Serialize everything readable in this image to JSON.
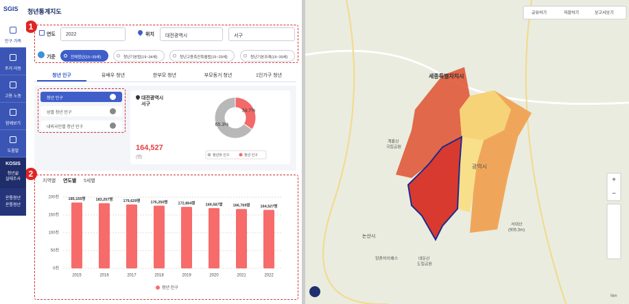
{
  "header": {
    "logo": "SGIS",
    "title": "청년통계지도"
  },
  "sidebar": {
    "items": [
      "인구·가족",
      "주거·이동",
      "고용·노동",
      "함께보기",
      "도움말"
    ],
    "selected": 0,
    "kosis": {
      "title": "KOSIS",
      "lines": [
        "청년삶",
        "실태조사"
      ]
    },
    "youth": {
      "lines": [
        "온통청년",
        "온통청년"
      ]
    }
  },
  "annotations": [
    "1",
    "2"
  ],
  "filters": {
    "year_label": "연도",
    "year": "2022",
    "location_label": "위치",
    "province": "대전광역시",
    "district": "서구",
    "basis_label": "기준",
    "options": [
      "전체청년(15~39세)",
      "청년기본법(19~34세)",
      "청년고용촉진특별법(15~29세)",
      "청년기본조례(19~39세)"
    ],
    "selected": 0
  },
  "tabs": {
    "items": [
      "청년 인구",
      "유배우 청년",
      "한부모 청년",
      "부모동거 청년",
      "1인가구 청년"
    ],
    "selected": 0
  },
  "submenu": {
    "items": [
      "청년 인구",
      "성별 청년 인구",
      "내외국인별 청년 인구"
    ],
    "selected": 0
  },
  "summary": {
    "region": [
      "대전광역시",
      "서구"
    ],
    "total": "164,527",
    "unit": "(명)",
    "donut": {
      "type": "pie",
      "names": [
        "청년외 인구",
        "청년 인구"
      ],
      "colors": [
        "#b8b8b8",
        "#f26a6a"
      ],
      "values": [
        65.3,
        34.7
      ],
      "value_labels": [
        "65.3%",
        "34.7%"
      ]
    }
  },
  "chart_tabs": {
    "items": [
      "지역별",
      "연도별",
      "5세별"
    ],
    "selected": 1
  },
  "bar_chart": {
    "type": "bar",
    "categories": [
      "2015",
      "2016",
      "2017",
      "2018",
      "2019",
      "2020",
      "2021",
      "2022"
    ],
    "series": [
      {
        "name": "청년 인구",
        "color": "#f76b6b",
        "values": [
          185155,
          183207,
          179629,
          176250,
          172864,
          169587,
          166769,
          164527
        ],
        "value_labels": [
          "185,155명",
          "183,207명",
          "179,629명",
          "176,250명",
          "172,864명",
          "169,587명",
          "166,769명",
          "164,527명"
        ]
      }
    ],
    "ylim": [
      0,
      200000
    ],
    "yticks": [
      {
        "value": 0,
        "label": "0천"
      },
      {
        "value": 50000,
        "label": "50천"
      },
      {
        "value": 100000,
        "label": "100천"
      },
      {
        "value": 150000,
        "label": "150천"
      },
      {
        "value": 200000,
        "label": "200천"
      }
    ],
    "grid": true
  },
  "map": {
    "buttons": [
      "공유하기",
      "저장하기",
      "보고서보기"
    ],
    "labels": [
      "세종특별자치시",
      "광역시",
      "계룡산",
      "국립공원",
      "논산시",
      "양촌하이패스",
      "서대산",
      "(905.3m)",
      "대둔산",
      "도립공원"
    ],
    "controls": [
      "+",
      "−"
    ],
    "scale": "5km"
  }
}
